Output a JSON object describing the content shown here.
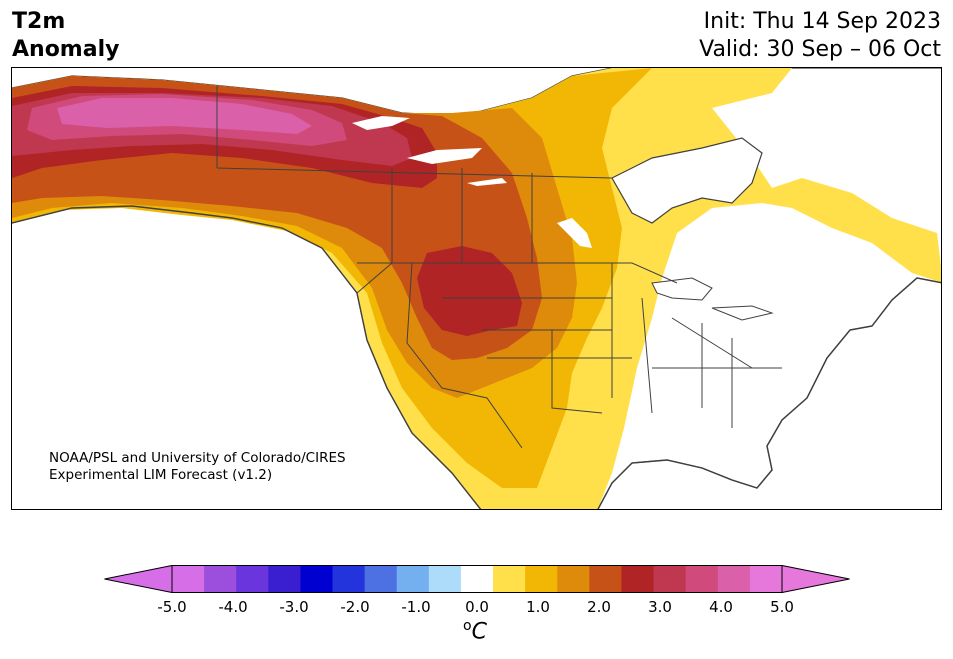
{
  "header": {
    "variable": "T2m",
    "quantity": "Anomaly",
    "init": "Init: Thu 14 Sep 2023",
    "valid": "Valid: 30 Sep – 06 Oct"
  },
  "credit": {
    "line1": "NOAA/PSL and University of Colorado/CIRES",
    "line2": "Experimental LIM Forecast (v1.2)"
  },
  "colorbar": {
    "unit_sup": "o",
    "unit": "C",
    "levels": [
      -5.0,
      -4.5,
      -4.0,
      -3.5,
      -3.0,
      -2.5,
      -2.0,
      -1.5,
      -1.0,
      -0.5,
      0.5,
      1.0,
      1.5,
      2.0,
      2.5,
      3.0,
      3.5,
      4.0,
      4.5,
      5.0
    ],
    "colors": [
      "#d66ee8",
      "#9b4fdc",
      "#6a35dd",
      "#3a1fd1",
      "#0000d0",
      "#2434dc",
      "#4d71e3",
      "#74aff0",
      "#addcfa",
      "#ffffff",
      "#ffe04a",
      "#f2b705",
      "#de8a0b",
      "#c65217",
      "#b02425",
      "#c0384f",
      "#d04a7c",
      "#db60aa",
      "#e678dc"
    ],
    "tick_labels": [
      "-5.0",
      "-4.0",
      "-3.0",
      "-2.0",
      "-1.0",
      "0.0",
      "1.0",
      "2.0",
      "3.0",
      "4.0",
      "5.0"
    ],
    "under_color": "#d66ee8",
    "over_color": "#e678dc"
  },
  "map": {
    "region": "North America",
    "land_outline_color": "#404040",
    "water_color": "#ffffff"
  }
}
